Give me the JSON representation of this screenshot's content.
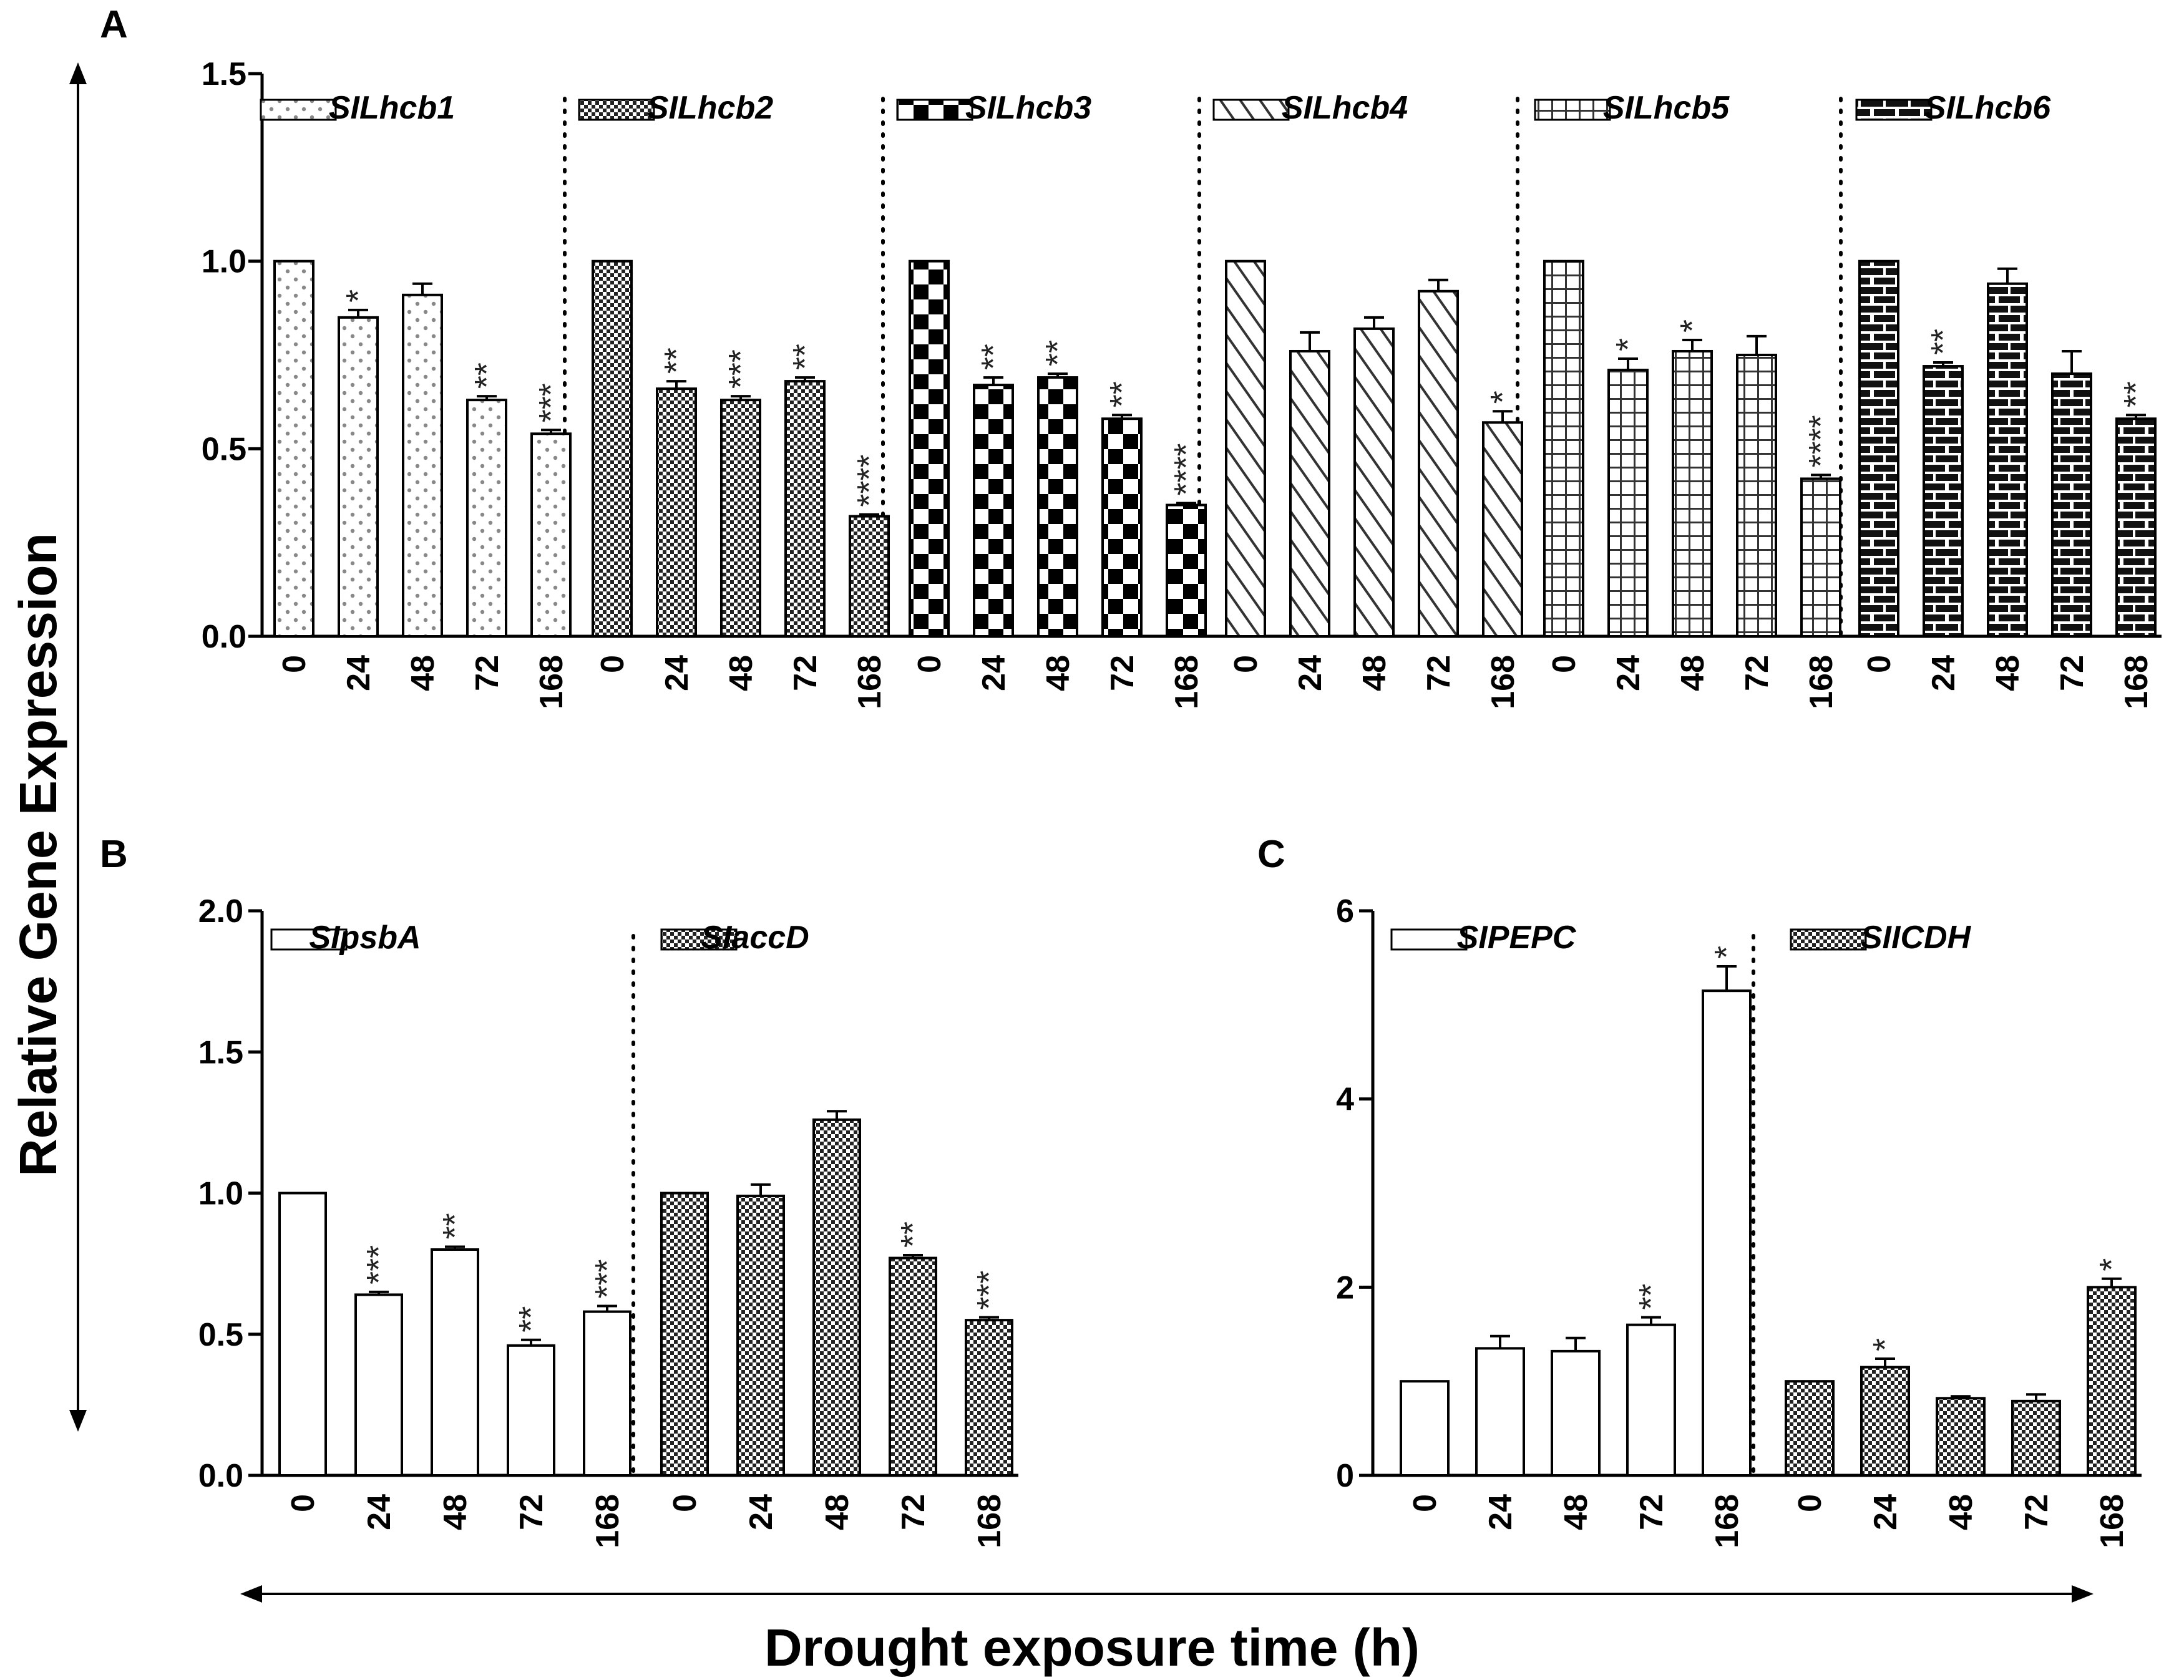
{
  "figure": {
    "y_axis_label": "Relative Gene Expression",
    "x_axis_label": "Drought exposure time  (h)"
  },
  "chart_data": [
    {
      "panel": "A",
      "type": "bar",
      "categories": [
        "0",
        "24",
        "48",
        "72",
        "168"
      ],
      "ylim": [
        0,
        1.5
      ],
      "yticks": [
        "0.0",
        "0.5",
        "1.0",
        "1.5"
      ],
      "ylabel": "Relative Gene Expression",
      "xlabel": "Drought exposure time (h)",
      "series": [
        {
          "name": "SlLhcb1",
          "pattern": "dots",
          "values": [
            1.0,
            0.85,
            0.91,
            0.63,
            0.54
          ],
          "errors": [
            0,
            0.02,
            0.03,
            0.01,
            0.01
          ],
          "sig": [
            "",
            "*",
            "",
            "**",
            "***"
          ]
        },
        {
          "name": "SlLhcb2",
          "pattern": "dense-check",
          "values": [
            1.0,
            0.66,
            0.63,
            0.68,
            0.32
          ],
          "errors": [
            0,
            0.02,
            0.01,
            0.01,
            0.005
          ],
          "sig": [
            "",
            "**",
            "***",
            "**",
            "****"
          ]
        },
        {
          "name": "SlLhcb3",
          "pattern": "checker",
          "values": [
            1.0,
            0.67,
            0.69,
            0.58,
            0.35
          ],
          "errors": [
            0,
            0.02,
            0.01,
            0.01,
            0.005
          ],
          "sig": [
            "",
            "**",
            "**",
            "**",
            "****"
          ]
        },
        {
          "name": "SlLhcb4",
          "pattern": "diagonal",
          "values": [
            1.0,
            0.76,
            0.82,
            0.92,
            0.57
          ],
          "errors": [
            0,
            0.05,
            0.03,
            0.03,
            0.03
          ],
          "sig": [
            "",
            "",
            "",
            "",
            "*"
          ]
        },
        {
          "name": "SlLhcb5",
          "pattern": "grid",
          "values": [
            1.0,
            0.71,
            0.76,
            0.75,
            0.42
          ],
          "errors": [
            0,
            0.03,
            0.03,
            0.05,
            0.01
          ],
          "sig": [
            "",
            "*",
            "*",
            "",
            "****"
          ]
        },
        {
          "name": "SlLhcb6",
          "pattern": "brick",
          "values": [
            1.0,
            0.72,
            0.94,
            0.7,
            0.58
          ],
          "errors": [
            0,
            0.01,
            0.04,
            0.06,
            0.01
          ],
          "sig": [
            "",
            "**",
            "",
            "",
            "**"
          ]
        }
      ]
    },
    {
      "panel": "B",
      "type": "bar",
      "categories": [
        "0",
        "24",
        "48",
        "72",
        "168"
      ],
      "ylim": [
        0,
        2.0
      ],
      "yticks": [
        "0.0",
        "0.5",
        "1.0",
        "1.5",
        "2.0"
      ],
      "ylabel": "Relative Gene Expression",
      "xlabel": "Drought exposure time (h)",
      "series": [
        {
          "name": "SlpsbA",
          "pattern": "empty",
          "values": [
            1.0,
            0.64,
            0.8,
            0.46,
            0.58
          ],
          "errors": [
            0,
            0.01,
            0.01,
            0.02,
            0.02
          ],
          "sig": [
            "",
            "***",
            "**",
            "**",
            "***"
          ]
        },
        {
          "name": "SlaccD",
          "pattern": "dense-check",
          "values": [
            1.0,
            0.99,
            1.26,
            0.77,
            0.55
          ],
          "errors": [
            0,
            0.04,
            0.03,
            0.01,
            0.01
          ],
          "sig": [
            "",
            "",
            "",
            "**",
            "***"
          ]
        }
      ]
    },
    {
      "panel": "C",
      "type": "bar",
      "categories": [
        "0",
        "24",
        "48",
        "72",
        "168"
      ],
      "ylim": [
        0,
        6
      ],
      "yticks": [
        "0",
        "2",
        "4",
        "6"
      ],
      "ylabel": "Relative Gene Expression",
      "xlabel": "Drought exposure time (h)",
      "series": [
        {
          "name": "SlPEPC",
          "pattern": "empty",
          "values": [
            1.0,
            1.35,
            1.32,
            1.6,
            5.15
          ],
          "errors": [
            0,
            0.13,
            0.14,
            0.08,
            0.26
          ],
          "sig": [
            "",
            "",
            "",
            "**",
            "*"
          ]
        },
        {
          "name": "SlICDH",
          "pattern": "dense-check",
          "values": [
            1.0,
            1.15,
            0.82,
            0.79,
            2.0
          ],
          "errors": [
            0,
            0.09,
            0.02,
            0.07,
            0.09
          ],
          "sig": [
            "",
            "*",
            "",
            "",
            "*"
          ]
        }
      ]
    }
  ]
}
